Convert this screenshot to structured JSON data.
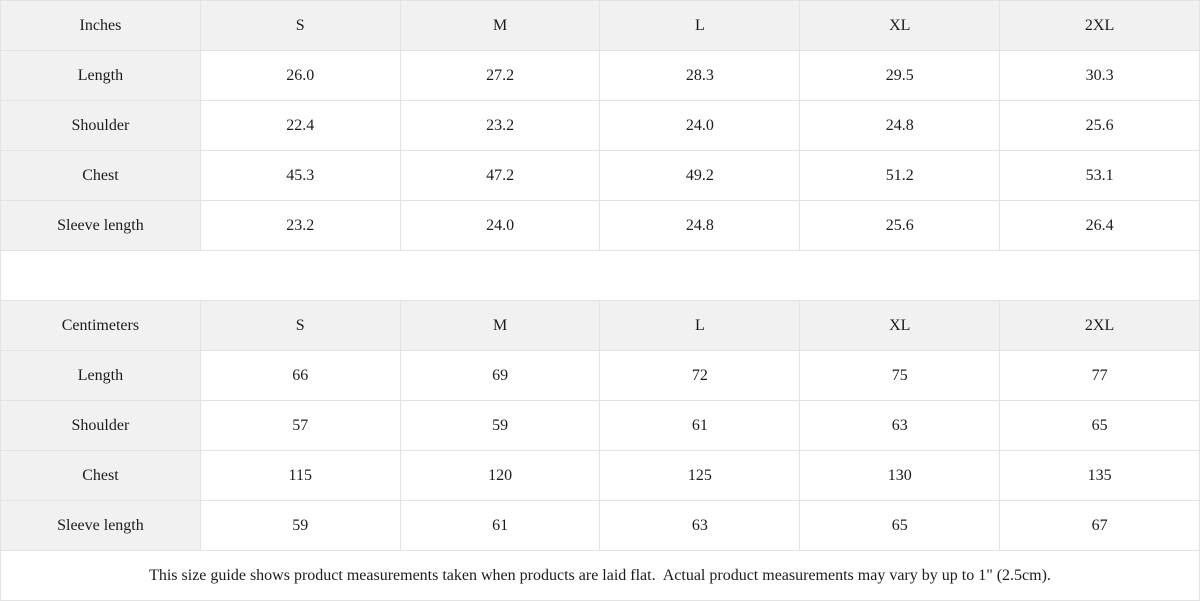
{
  "ui": {
    "inches": {
      "header": [
        "Inches",
        "S",
        "M",
        "L",
        "XL",
        "2XL"
      ],
      "rows": [
        {
          "label": "Length",
          "values": [
            "26.0",
            "27.2",
            "28.3",
            "29.5",
            "30.3"
          ]
        },
        {
          "label": "Shoulder",
          "values": [
            "22.4",
            "23.2",
            "24.0",
            "24.8",
            "25.6"
          ]
        },
        {
          "label": "Chest",
          "values": [
            "45.3",
            "47.2",
            "49.2",
            "51.2",
            "53.1"
          ]
        },
        {
          "label": "Sleeve length",
          "values": [
            "23.2",
            "24.0",
            "24.8",
            "25.6",
            "26.4"
          ]
        }
      ]
    },
    "centimeters": {
      "header": [
        "Centimeters",
        "S",
        "M",
        "L",
        "XL",
        "2XL"
      ],
      "rows": [
        {
          "label": "Length",
          "values": [
            "66",
            "69",
            "72",
            "75",
            "77"
          ]
        },
        {
          "label": "Shoulder",
          "values": [
            "57",
            "59",
            "61",
            "63",
            "65"
          ]
        },
        {
          "label": "Chest",
          "values": [
            "115",
            "120",
            "125",
            "130",
            "135"
          ]
        },
        {
          "label": "Sleeve length",
          "values": [
            "59",
            "61",
            "63",
            "65",
            "67"
          ]
        }
      ]
    },
    "footer_note": "This size guide shows product measurements taken when products are laid flat.  Actual product measurements may vary by up to 1\" (2.5cm)."
  },
  "colors": {
    "header_bg": "#f1f1f1",
    "cell_bg": "#ffffff",
    "border": "#e3e3e3",
    "text": "#1c1c1c"
  },
  "chart_data": [
    {
      "type": "table",
      "title": "Size guide (Inches)",
      "columns": [
        "Inches",
        "S",
        "M",
        "L",
        "XL",
        "2XL"
      ],
      "rows": [
        [
          "Length",
          26.0,
          27.2,
          28.3,
          29.5,
          30.3
        ],
        [
          "Shoulder",
          22.4,
          23.2,
          24.0,
          24.8,
          25.6
        ],
        [
          "Chest",
          45.3,
          47.2,
          49.2,
          51.2,
          53.1
        ],
        [
          "Sleeve length",
          23.2,
          24.0,
          24.8,
          25.6,
          26.4
        ]
      ]
    },
    {
      "type": "table",
      "title": "Size guide (Centimeters)",
      "columns": [
        "Centimeters",
        "S",
        "M",
        "L",
        "XL",
        "2XL"
      ],
      "rows": [
        [
          "Length",
          66,
          69,
          72,
          75,
          77
        ],
        [
          "Shoulder",
          57,
          59,
          61,
          63,
          65
        ],
        [
          "Chest",
          115,
          120,
          125,
          130,
          135
        ],
        [
          "Sleeve length",
          59,
          61,
          63,
          65,
          67
        ]
      ]
    }
  ]
}
